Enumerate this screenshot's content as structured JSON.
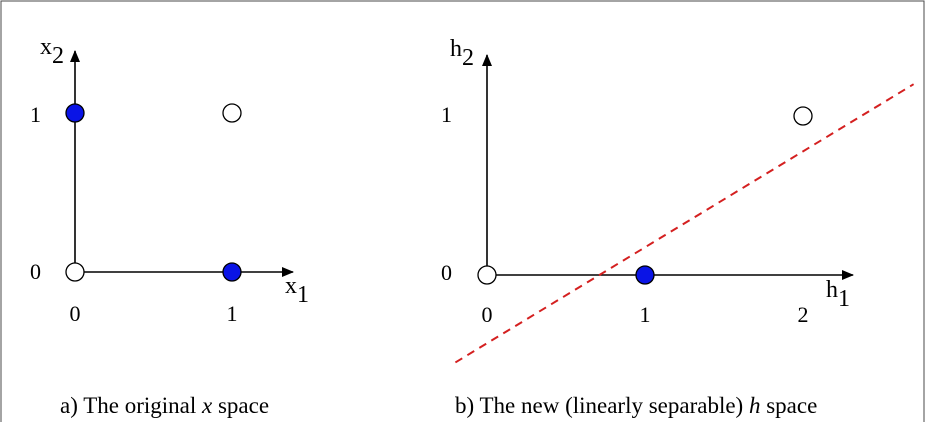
{
  "colors": {
    "frame": "#4a4a4a",
    "axis": "#000000",
    "blue_point": "#0a14e6",
    "white_point": "#ffffff",
    "separator_line": "#d42020"
  },
  "panel_a": {
    "x_axis_label": {
      "base": "x",
      "sub": "1"
    },
    "y_axis_label": {
      "base": "x",
      "sub": "2"
    },
    "x_tick_labels": [
      "0",
      "1"
    ],
    "y_tick_labels": [
      "0",
      "1"
    ],
    "points": [
      {
        "x": 0,
        "y": 0,
        "class": "white"
      },
      {
        "x": 1,
        "y": 0,
        "class": "blue"
      },
      {
        "x": 0,
        "y": 1,
        "class": "blue"
      },
      {
        "x": 1,
        "y": 1,
        "class": "white"
      }
    ],
    "caption": {
      "prefix": "a) The original ",
      "var": "x",
      "suffix": " space"
    }
  },
  "panel_b": {
    "x_axis_label": {
      "base": "h",
      "sub": "1"
    },
    "y_axis_label": {
      "base": "h",
      "sub": "2"
    },
    "x_tick_labels": [
      "0",
      "1",
      "2"
    ],
    "y_tick_labels": [
      "0",
      "1"
    ],
    "points": [
      {
        "x": 0,
        "y": 0,
        "class": "white"
      },
      {
        "x": 1,
        "y": 0,
        "class": "blue"
      },
      {
        "x": 2,
        "y": 1,
        "class": "white"
      }
    ],
    "separator": {
      "style": "dashed",
      "from": [
        -0.2,
        -0.55
      ],
      "to": [
        2.7,
        1.2
      ]
    },
    "caption": {
      "prefix": "b) The new (linearly separable) ",
      "var": "h",
      "suffix": " space"
    }
  }
}
